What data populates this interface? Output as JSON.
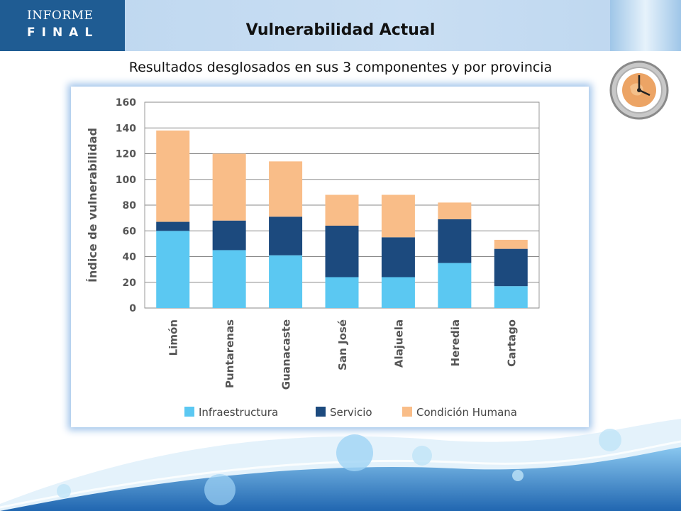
{
  "header": {
    "logo_line1": "INFORME",
    "logo_line2": "FINAL",
    "title": "Vulnerabilidad Actual",
    "subtitle": "Resultados desglosados en sus 3 componentes y por provincia"
  },
  "icons": {
    "clock": "clock-icon",
    "water": "water-wave-decoration"
  },
  "colors": {
    "infraestructura": "#5bc8f2",
    "servicio": "#1c4a7e",
    "condicion": "#f9bd88"
  },
  "chart_data": {
    "type": "bar",
    "stacked": true,
    "categories": [
      "Limón",
      "Puntarenas",
      "Guanacaste",
      "San José",
      "Alajuela",
      "Heredia",
      "Cartago"
    ],
    "series": [
      {
        "name": "Infraestructura",
        "values": [
          60,
          45,
          41,
          24,
          24,
          35,
          17
        ]
      },
      {
        "name": "Servicio",
        "values": [
          7,
          23,
          30,
          40,
          31,
          34,
          29
        ]
      },
      {
        "name": "Condición Humana",
        "values": [
          71,
          52,
          43,
          24,
          33,
          13,
          7
        ]
      }
    ],
    "ylabel": "Índice de vulnerabilidad",
    "ylim": [
      0,
      160
    ],
    "yticks": [
      0,
      20,
      40,
      60,
      80,
      100,
      120,
      140,
      160
    ],
    "grid": true,
    "legend": "bottom"
  }
}
